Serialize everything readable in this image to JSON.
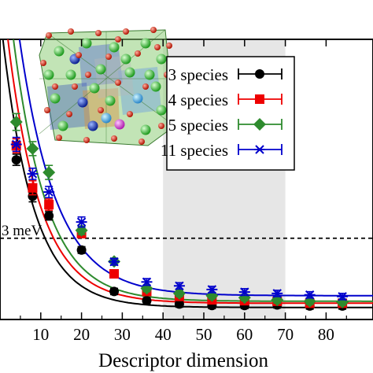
{
  "chart_data": {
    "type": "scatter",
    "title": "",
    "xlabel": "Descriptor dimension",
    "ylabel": "",
    "xlim": [
      0,
      90
    ],
    "xticks": [
      10,
      20,
      30,
      40,
      50,
      60,
      70,
      80
    ],
    "ylim": [
      0,
      1
    ],
    "shaded_region": [
      40,
      70
    ],
    "grid": false,
    "legend_position": "top-right",
    "reference_line": {
      "label": "3 meV",
      "y": 0.29,
      "style": "dashed"
    },
    "series": [
      {
        "name": "3 species",
        "color": "#000000",
        "marker": "circle",
        "x": [
          4,
          8,
          12,
          20,
          28,
          36,
          44,
          52,
          60,
          68,
          76,
          84
        ],
        "y": [
          0.57,
          0.44,
          0.37,
          0.248,
          0.1,
          0.067,
          0.055,
          0.05,
          0.05,
          0.052,
          0.048,
          0.048
        ],
        "err": [
          0.02,
          0.02,
          0.015,
          0.012,
          0.01,
          0.01,
          0.008,
          0.008,
          0.008,
          0.008,
          0.008,
          0.008
        ],
        "fit": {
          "y0": 0.043,
          "a": 1.05,
          "k": 0.131
        }
      },
      {
        "name": "4 species",
        "color": "#ee0000",
        "marker": "square",
        "x": [
          4,
          8,
          12,
          20,
          28,
          36,
          44,
          52,
          60,
          68,
          76,
          84
        ],
        "y": [
          0.62,
          0.47,
          0.41,
          0.307,
          0.163,
          0.1,
          0.082,
          0.07,
          0.067,
          0.065,
          0.058,
          0.058
        ],
        "err": [
          0.025,
          0.025,
          0.02,
          0.015,
          0.012,
          0.012,
          0.01,
          0.01,
          0.01,
          0.01,
          0.01,
          0.01
        ],
        "fit": {
          "y0": 0.058,
          "a": 1.2,
          "k": 0.125
        }
      },
      {
        "name": "5 species",
        "color": "#2e8b2e",
        "marker": "diamond",
        "x": [
          4,
          8,
          12,
          20,
          28,
          36,
          44,
          52,
          60,
          68,
          76,
          84
        ],
        "y": [
          0.705,
          0.61,
          0.525,
          0.318,
          0.207,
          0.111,
          0.093,
          0.085,
          0.078,
          0.07,
          0.065,
          0.062
        ],
        "err": [
          0.03,
          0.025,
          0.025,
          0.015,
          0.012,
          0.012,
          0.01,
          0.01,
          0.01,
          0.01,
          0.01,
          0.01
        ],
        "fit": {
          "y0": 0.065,
          "a": 1.4,
          "k": 0.122
        }
      },
      {
        "name": "11 species",
        "color": "#0000cc",
        "marker": "asterisk",
        "x": [
          4,
          8,
          12,
          20,
          28,
          36,
          44,
          52,
          60,
          68,
          76,
          84
        ],
        "y": [
          0.625,
          0.52,
          0.455,
          0.348,
          0.206,
          0.134,
          0.12,
          0.107,
          0.098,
          0.093,
          0.088,
          0.082
        ],
        "err": [
          0.025,
          0.02,
          0.02,
          0.018,
          0.012,
          0.012,
          0.01,
          0.01,
          0.012,
          0.01,
          0.01,
          0.01
        ],
        "fit": {
          "y0": 0.085,
          "a": 1.55,
          "k": 0.11
        }
      }
    ]
  }
}
